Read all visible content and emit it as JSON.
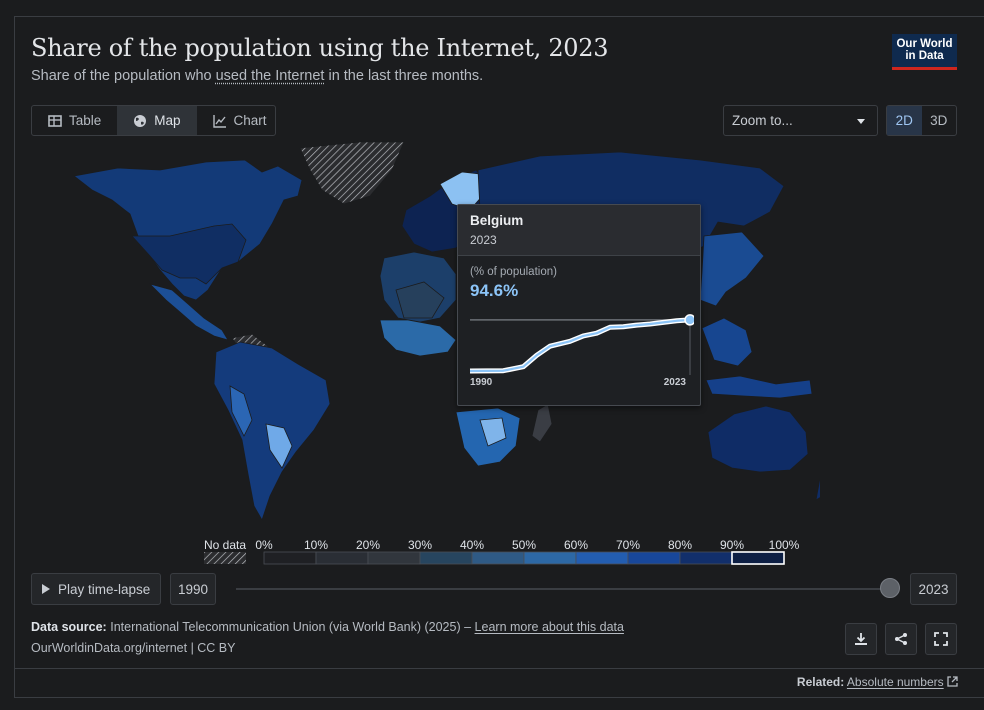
{
  "header": {
    "title": "Share of the population using the Internet, 2023",
    "subtitle_before": "Share of the population who ",
    "subtitle_link": "used the Internet",
    "subtitle_after": " in the last three months.",
    "logo_line1": "Our World",
    "logo_line2": "in Data"
  },
  "tabs": [
    {
      "label": "Table",
      "icon": "table-icon"
    },
    {
      "label": "Map",
      "icon": "globe-icon",
      "active": true
    },
    {
      "label": "Chart",
      "icon": "line-chart-icon"
    }
  ],
  "zoom": {
    "label": "Zoom to..."
  },
  "view_toggle": {
    "options": [
      "2D",
      "3D"
    ],
    "active": "2D"
  },
  "tooltip": {
    "entity": "Belgium",
    "year": "2023",
    "unit": "(% of population)",
    "value": "94.6%",
    "start_label": "1990",
    "end_label": "2023"
  },
  "chart_data": {
    "type": "choropleth",
    "title": "Share of the population using the Internet, 2023",
    "year": 2023,
    "legend": {
      "no_data_label": "No data",
      "bins": [
        "0%",
        "10%",
        "20%",
        "30%",
        "40%",
        "50%",
        "60%",
        "70%",
        "80%",
        "90%",
        "100%"
      ],
      "colors": [
        "#1f2024",
        "#2a2e35",
        "#31363d",
        "#27455f",
        "#2f5a85",
        "#2d68a5",
        "#235db0",
        "#18479a",
        "#122f6b",
        "#0d1f44"
      ],
      "highlighted_bin": "90%-100%"
    },
    "highlight": {
      "entity": "Belgium",
      "value": 94.6,
      "series": {
        "name": "Belgium",
        "x": [
          1990,
          1995,
          1998,
          2000,
          2002,
          2003,
          2005,
          2007,
          2009,
          2011,
          2013,
          2015,
          2017,
          2019,
          2021,
          2023
        ],
        "values": [
          0,
          0.5,
          8,
          29,
          46,
          49,
          55,
          65,
          70,
          81,
          82,
          85,
          87,
          90,
          93,
          94.6
        ]
      }
    }
  },
  "timeline": {
    "play_label": "Play time-lapse",
    "start_year": "1990",
    "end_year": "2023"
  },
  "source": {
    "label": "Data source:",
    "text": "International Telecommunication Union (via World Bank) (2025) –",
    "link": "Learn more about this data",
    "url_line": "OurWorldinData.org/internet | CC BY"
  },
  "related": {
    "label": "Related:",
    "link": "Absolute numbers"
  }
}
